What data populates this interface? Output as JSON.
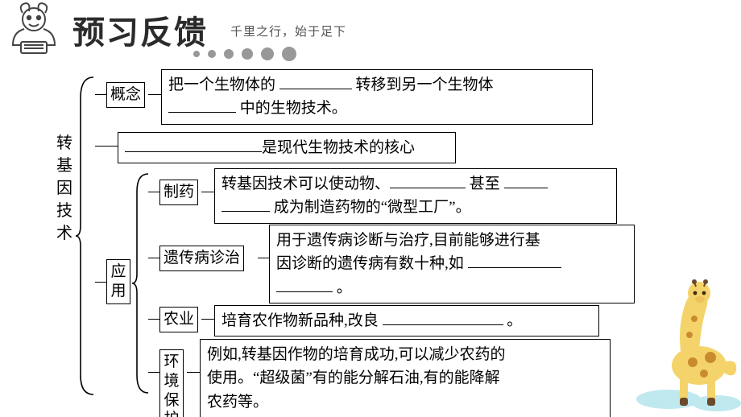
{
  "banner": {
    "title": "预习反馈",
    "subtitle": "千里之行，始于足下",
    "title_fontsize": 40,
    "sub_fontsize": 15,
    "dot_color": "#989898",
    "dot_sizes": [
      8,
      10,
      12,
      14,
      16,
      18
    ]
  },
  "root": "转基因技术",
  "nodes": {
    "concept_label": "概念",
    "application_label": "应用",
    "pharma_label": "制药",
    "genetic_label": "遗传病诊治",
    "agri_label": "农业",
    "env_label": "环境保护"
  },
  "boxes": {
    "concept_1a": "把一个生物体的 ",
    "concept_1b": " 转移到另一个生物体",
    "concept_2a": " 中的生物技术。",
    "core_suffix": "是现代生物技术的核心",
    "pharma_1a": "转基因技术可以使动物、",
    "pharma_1b": " 甚至 ",
    "pharma_2a": " 成为制造药物的“微型工厂”。",
    "genetic_1": "用于遗传病诊断与治疗,目前能够进行基",
    "genetic_2a": "因诊断的遗传病有数十种,如 ",
    "genetic_3a": " 。",
    "agri_1a": "培育农作物新品种,改良 ",
    "agri_1b": " 。",
    "env_1": "例如,转基因作物的培育成功,可以减少农药的",
    "env_2": "使用。“超级菌”有的能分解石油,有的能降解",
    "env_3": "农药等。"
  },
  "blanks": {
    "concept_b1_w": 90,
    "concept_b2_w": 84,
    "core_b_w": 170,
    "pharma_b1_w": 94,
    "pharma_b2_w": 54,
    "pharma_b3_w": 60,
    "genetic_b1_w": 116,
    "genetic_b2_w": 70,
    "agri_b1_w": 150
  },
  "style": {
    "box_border": "#000000",
    "font_body": 19,
    "font_root": 20,
    "bg": "#ffffff",
    "giraffe_body": "#f4d46a",
    "giraffe_spot": "#c98b2e",
    "giraffe_hoof": "#6b4a2b",
    "cloud": "#bfe8ef"
  }
}
